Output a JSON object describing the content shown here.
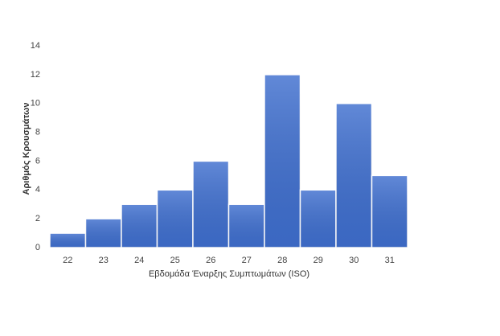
{
  "chart_data": {
    "type": "bar",
    "x_label": "Εβδομάδα Έναρξης Συμπτωμάτων (ISO)",
    "y_label": "Αριθμός Κρουσμάτων",
    "categories": [
      "22",
      "23",
      "24",
      "25",
      "26",
      "27",
      "28",
      "29",
      "30",
      "31"
    ],
    "values": [
      1,
      2,
      3,
      4,
      6,
      3,
      12,
      4,
      10,
      5
    ],
    "color": "#3f6fcf",
    "ylim": [
      0,
      14
    ],
    "yticks": [
      0,
      2,
      4,
      6,
      8,
      10,
      12,
      14
    ],
    "grid": false
  }
}
